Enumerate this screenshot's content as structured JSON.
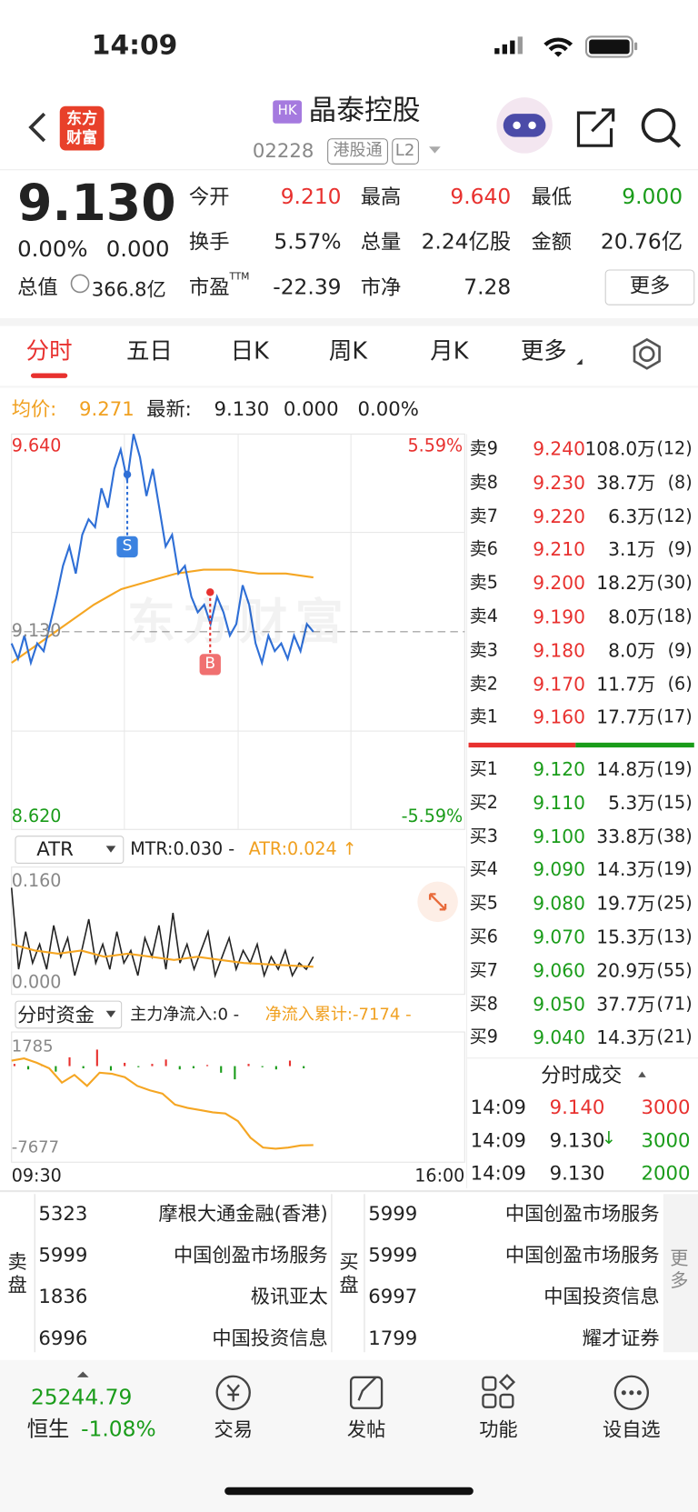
{
  "status_bar": {
    "time": "14:09"
  },
  "header": {
    "logo_top": "东方",
    "logo_bottom": "财富",
    "badge": "HK",
    "name": "晶泰控股",
    "code": "02228",
    "tag_connect": "港股通",
    "tag_level": "L2"
  },
  "quote": {
    "price": "9.130",
    "change_pct": "0.00%",
    "change": "0.000",
    "cap_label": "总值",
    "cap": "366.8亿",
    "more": "更多",
    "stats": [
      {
        "label": "今开",
        "value": "9.210"
      },
      {
        "label": "最高",
        "value": "9.640"
      },
      {
        "label": "最低",
        "value": "9.000"
      },
      {
        "label": "换手",
        "value": "5.57%"
      },
      {
        "label": "总量",
        "value": "2.24亿股"
      },
      {
        "label": "金额",
        "value": "20.76亿"
      },
      {
        "label": "市盈",
        "sup": "TTM",
        "value": "-22.39"
      },
      {
        "label": "市净",
        "value": "7.28"
      }
    ]
  },
  "tabs": [
    "分时",
    "五日",
    "日K",
    "周K",
    "月K",
    "更多"
  ],
  "intraday": {
    "avg_label": "均价:",
    "avg": "9.271",
    "latest_label": "最新:",
    "latest": "9.130",
    "change": "0.000",
    "change_pct": "0.00%",
    "y_top": "9.640",
    "y_mid": "9.130",
    "y_bottom": "8.620",
    "pct_top": "5.59%",
    "pct_bottom": "-5.59%",
    "watermark": "东方财富",
    "sell_mark": "S",
    "buy_mark": "B",
    "price_series": [
      9.1,
      9.06,
      9.12,
      9.05,
      9.1,
      9.08,
      9.15,
      9.22,
      9.3,
      9.35,
      9.28,
      9.38,
      9.42,
      9.4,
      9.5,
      9.45,
      9.55,
      9.6,
      9.52,
      9.64,
      9.58,
      9.48,
      9.55,
      9.45,
      9.35,
      9.38,
      9.28,
      9.3,
      9.22,
      9.18,
      9.2,
      9.15,
      9.22,
      9.18,
      9.12,
      9.15,
      9.25,
      9.2,
      9.1,
      9.05,
      9.12,
      9.08,
      9.1,
      9.06,
      9.12,
      9.08,
      9.15,
      9.13
    ],
    "avg_series": [
      9.05,
      9.1,
      9.15,
      9.2,
      9.24,
      9.26,
      9.28,
      9.29,
      9.29,
      9.28,
      9.28,
      9.27
    ]
  },
  "atr": {
    "selector": "ATR",
    "mtr": "MTR:0.030 -",
    "atr": "ATR:0.024 ↑",
    "y_top": "0.160",
    "y_bottom": "0.000",
    "tr_series": [
      0.15,
      0.02,
      0.08,
      0.03,
      0.06,
      0.02,
      0.09,
      0.04,
      0.07,
      0.01,
      0.05,
      0.1,
      0.03,
      0.06,
      0.02,
      0.08,
      0.03,
      0.05,
      0.01,
      0.07,
      0.04,
      0.09,
      0.02,
      0.11,
      0.03,
      0.06,
      0.02,
      0.05,
      0.08,
      0.01,
      0.04,
      0.07,
      0.02,
      0.05,
      0.03,
      0.06,
      0.01,
      0.04,
      0.02,
      0.05,
      0.01,
      0.03,
      0.02,
      0.04
    ],
    "atr_series": [
      0.06,
      0.05,
      0.045,
      0.05,
      0.04,
      0.045,
      0.04,
      0.035,
      0.04,
      0.035,
      0.03,
      0.028,
      0.026,
      0.024
    ]
  },
  "fund": {
    "selector": "分时资金",
    "main": "主力净流入:0 -",
    "cumulative": "净流入累计:-7174 -",
    "y_top": "1785",
    "y_bottom": "-7677",
    "time_start": "09:30",
    "time_end": "16:00",
    "cum_series": [
      500,
      700,
      300,
      -200,
      -1500,
      -800,
      -1800,
      -600,
      -700,
      -1000,
      -1800,
      -2200,
      -2500,
      -3500,
      -3800,
      -4000,
      -4200,
      -4300,
      -5000,
      -6500,
      -7400,
      -7500,
      -7400,
      -7200,
      -7174
    ],
    "flow_bars": [
      200,
      -300,
      100,
      -500,
      800,
      -200,
      1500,
      -400,
      300,
      -100,
      200,
      600,
      -300,
      -200,
      100,
      -600,
      -1200,
      200,
      -100,
      -300,
      500,
      -200
    ]
  },
  "order_book": {
    "asks": [
      {
        "label": "卖9",
        "price": "9.240",
        "volume": "108.0万",
        "count": "(12)"
      },
      {
        "label": "卖8",
        "price": "9.230",
        "volume": "38.7万",
        "count": "(8)"
      },
      {
        "label": "卖7",
        "price": "9.220",
        "volume": "6.3万",
        "count": "(12)"
      },
      {
        "label": "卖6",
        "price": "9.210",
        "volume": "3.1万",
        "count": "(9)"
      },
      {
        "label": "卖5",
        "price": "9.200",
        "volume": "18.2万",
        "count": "(30)"
      },
      {
        "label": "卖4",
        "price": "9.190",
        "volume": "8.0万",
        "count": "(18)"
      },
      {
        "label": "卖3",
        "price": "9.180",
        "volume": "8.0万",
        "count": "(9)"
      },
      {
        "label": "卖2",
        "price": "9.170",
        "volume": "11.7万",
        "count": "(6)"
      },
      {
        "label": "卖1",
        "price": "9.160",
        "volume": "17.7万",
        "count": "(17)"
      }
    ],
    "bids": [
      {
        "label": "买1",
        "price": "9.120",
        "volume": "14.8万",
        "count": "(19)"
      },
      {
        "label": "买2",
        "price": "9.110",
        "volume": "5.3万",
        "count": "(15)"
      },
      {
        "label": "买3",
        "price": "9.100",
        "volume": "33.8万",
        "count": "(38)"
      },
      {
        "label": "买4",
        "price": "9.090",
        "volume": "14.3万",
        "count": "(19)"
      },
      {
        "label": "买5",
        "price": "9.080",
        "volume": "19.7万",
        "count": "(25)"
      },
      {
        "label": "买6",
        "price": "9.070",
        "volume": "15.3万",
        "count": "(13)"
      },
      {
        "label": "买7",
        "price": "9.060",
        "volume": "20.9万",
        "count": "(55)"
      },
      {
        "label": "买8",
        "price": "9.050",
        "volume": "37.7万",
        "count": "(71)"
      },
      {
        "label": "买9",
        "price": "9.040",
        "volume": "14.3万",
        "count": "(21)"
      }
    ]
  },
  "trades": {
    "title": "分时成交",
    "rows": [
      {
        "time": "14:09",
        "price": "9.140",
        "volume": "3000"
      },
      {
        "time": "14:09",
        "price": "9.130",
        "arrow": "↓",
        "volume": "3000"
      },
      {
        "time": "14:09",
        "price": "9.130",
        "volume": "2000"
      }
    ]
  },
  "brokers": {
    "sell_label": "卖盘",
    "buy_label": "买盘",
    "more": "更多",
    "sell": [
      {
        "code": "5323",
        "name": "摩根大通金融(香港)"
      },
      {
        "code": "5999",
        "name": "中国创盈市场服务"
      },
      {
        "code": "1836",
        "name": "极讯亚太"
      },
      {
        "code": "6996",
        "name": "中国投资信息"
      }
    ],
    "buy": [
      {
        "code": "5999",
        "name": "中国创盈市场服务"
      },
      {
        "code": "5999",
        "name": "中国创盈市场服务"
      },
      {
        "code": "6997",
        "name": "中国投资信息"
      },
      {
        "code": "1799",
        "name": "耀才证券"
      }
    ]
  },
  "bottom_bar": {
    "index_value": "25244.79",
    "index_name": "恒生",
    "index_change": "-1.08%",
    "items": [
      "交易",
      "发帖",
      "功能",
      "设自选"
    ]
  }
}
